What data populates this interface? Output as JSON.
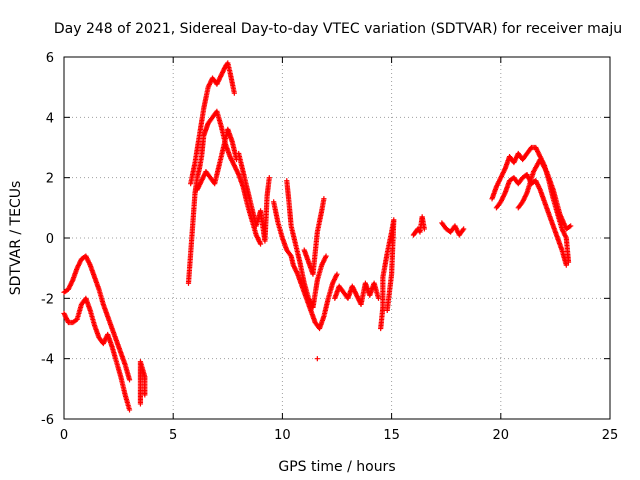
{
  "chart_data": {
    "type": "scatter",
    "title": "Day 248 of 2021, Sidereal Day-to-day VTEC variation (SDTVAR) for receiver maju",
    "xlabel": "GPS time / hours",
    "ylabel": "SDTVAR / TECUs",
    "xlim": [
      0,
      25
    ],
    "ylim": [
      -6,
      6
    ],
    "xticks": [
      0,
      5,
      10,
      15,
      20,
      25
    ],
    "yticks": [
      -6,
      -4,
      -2,
      0,
      2,
      4,
      6
    ],
    "xtick_labels": [
      "0",
      "5",
      "10",
      "15",
      "20",
      "25"
    ],
    "ytick_labels": [
      "-6",
      "-4",
      "-2",
      "0",
      "2",
      "4",
      "6"
    ],
    "grid": true,
    "marker": "+",
    "series": [
      {
        "name": "maju",
        "color": "#ff0000",
        "segments": [
          [
            [
              0.0,
              -1.8
            ],
            [
              0.2,
              -1.7
            ],
            [
              0.4,
              -1.4
            ],
            [
              0.6,
              -1.0
            ],
            [
              0.8,
              -0.7
            ],
            [
              1.0,
              -0.6
            ],
            [
              1.2,
              -0.9
            ],
            [
              1.4,
              -1.3
            ],
            [
              1.6,
              -1.7
            ],
            [
              1.8,
              -2.2
            ],
            [
              2.0,
              -2.6
            ],
            [
              2.2,
              -3.0
            ],
            [
              2.4,
              -3.4
            ],
            [
              2.6,
              -3.8
            ],
            [
              2.8,
              -4.2
            ],
            [
              3.0,
              -4.7
            ]
          ],
          [
            [
              0.0,
              -2.5
            ],
            [
              0.2,
              -2.8
            ],
            [
              0.4,
              -2.8
            ],
            [
              0.6,
              -2.7
            ],
            [
              0.8,
              -2.2
            ],
            [
              1.0,
              -2.0
            ],
            [
              1.2,
              -2.4
            ],
            [
              1.4,
              -2.9
            ],
            [
              1.6,
              -3.3
            ],
            [
              1.8,
              -3.5
            ],
            [
              2.0,
              -3.2
            ],
            [
              2.2,
              -3.6
            ],
            [
              2.4,
              -4.1
            ],
            [
              2.6,
              -4.6
            ],
            [
              2.8,
              -5.2
            ],
            [
              3.0,
              -5.7
            ]
          ],
          [
            [
              3.5,
              -5.5
            ],
            [
              3.5,
              -5.0
            ],
            [
              3.5,
              -4.5
            ],
            [
              3.5,
              -4.1
            ],
            [
              3.7,
              -4.6
            ],
            [
              3.7,
              -5.2
            ]
          ],
          [
            [
              5.7,
              -1.5
            ],
            [
              5.8,
              -0.5
            ],
            [
              5.9,
              0.5
            ],
            [
              6.0,
              1.5
            ],
            [
              6.1,
              2.0
            ],
            [
              6.2,
              2.3
            ],
            [
              6.3,
              2.7
            ],
            [
              6.4,
              3.4
            ],
            [
              6.5,
              3.6
            ],
            [
              6.6,
              3.8
            ],
            [
              6.8,
              4.0
            ],
            [
              7.0,
              4.2
            ],
            [
              7.2,
              3.7
            ],
            [
              7.4,
              3.1
            ],
            [
              7.6,
              2.7
            ],
            [
              7.8,
              2.4
            ],
            [
              8.0,
              2.1
            ],
            [
              8.2,
              1.7
            ],
            [
              8.4,
              1.1
            ],
            [
              8.6,
              0.6
            ],
            [
              8.8,
              0.1
            ],
            [
              9.0,
              -0.2
            ]
          ],
          [
            [
              5.8,
              1.8
            ],
            [
              6.0,
              2.5
            ],
            [
              6.2,
              3.4
            ],
            [
              6.4,
              4.3
            ],
            [
              6.6,
              5.0
            ],
            [
              6.8,
              5.3
            ],
            [
              7.0,
              5.1
            ],
            [
              7.2,
              5.4
            ],
            [
              7.4,
              5.7
            ],
            [
              7.5,
              5.8
            ],
            [
              7.6,
              5.5
            ],
            [
              7.8,
              4.8
            ]
          ],
          [
            [
              6.1,
              1.6
            ],
            [
              6.3,
              1.9
            ],
            [
              6.5,
              2.2
            ],
            [
              6.7,
              2.0
            ],
            [
              6.9,
              1.8
            ],
            [
              7.1,
              2.4
            ],
            [
              7.3,
              3.0
            ],
            [
              7.5,
              3.6
            ],
            [
              7.7,
              3.2
            ],
            [
              7.9,
              2.6
            ]
          ],
          [
            [
              8.0,
              2.8
            ],
            [
              8.2,
              2.2
            ],
            [
              8.4,
              1.6
            ],
            [
              8.6,
              1.0
            ],
            [
              8.8,
              0.4
            ],
            [
              9.0,
              0.9
            ],
            [
              9.2,
              -0.1
            ],
            [
              9.3,
              1.4
            ],
            [
              9.4,
              2.0
            ]
          ],
          [
            [
              9.6,
              1.2
            ],
            [
              9.8,
              0.5
            ],
            [
              10.0,
              0.0
            ],
            [
              10.2,
              -0.4
            ],
            [
              10.4,
              -0.6
            ],
            [
              10.5,
              -0.9
            ],
            [
              10.7,
              -1.2
            ],
            [
              10.9,
              -1.6
            ],
            [
              11.1,
              -2.0
            ],
            [
              11.3,
              -2.4
            ],
            [
              11.5,
              -2.8
            ],
            [
              11.7,
              -3.0
            ],
            [
              11.9,
              -2.6
            ],
            [
              12.1,
              -2.0
            ],
            [
              12.3,
              -1.5
            ],
            [
              12.5,
              -1.2
            ]
          ],
          [
            [
              10.2,
              1.9
            ],
            [
              10.3,
              1.2
            ],
            [
              10.4,
              0.4
            ],
            [
              10.6,
              -0.2
            ],
            [
              10.8,
              -0.8
            ],
            [
              11.0,
              -1.5
            ],
            [
              11.2,
              -2.0
            ],
            [
              11.4,
              -2.3
            ],
            [
              11.6,
              -1.4
            ],
            [
              11.8,
              -0.9
            ],
            [
              12.0,
              -0.6
            ]
          ],
          [
            [
              11.0,
              -0.4
            ],
            [
              11.2,
              -0.8
            ],
            [
              11.4,
              -1.2
            ],
            [
              11.6,
              0.2
            ],
            [
              11.8,
              0.9
            ],
            [
              11.9,
              1.3
            ]
          ],
          [
            [
              11.6,
              -4.0
            ]
          ],
          [
            [
              12.4,
              -2.0
            ],
            [
              12.6,
              -1.6
            ],
            [
              12.8,
              -1.8
            ],
            [
              13.0,
              -2.0
            ],
            [
              13.2,
              -1.6
            ],
            [
              13.4,
              -1.9
            ],
            [
              13.6,
              -2.2
            ],
            [
              13.8,
              -1.5
            ],
            [
              14.0,
              -1.9
            ],
            [
              14.2,
              -1.5
            ],
            [
              14.4,
              -2.0
            ]
          ],
          [
            [
              14.5,
              -3.0
            ],
            [
              14.6,
              -2.3
            ],
            [
              14.6,
              -1.3
            ],
            [
              14.8,
              -0.5
            ],
            [
              15.0,
              0.2
            ],
            [
              15.1,
              0.6
            ],
            [
              15.0,
              -1.2
            ],
            [
              14.8,
              -2.4
            ]
          ],
          [
            [
              16.0,
              0.1
            ],
            [
              16.1,
              0.2
            ],
            [
              16.2,
              0.3
            ],
            [
              16.3,
              0.2
            ],
            [
              16.4,
              0.7
            ],
            [
              16.5,
              0.3
            ]
          ],
          [
            [
              17.3,
              0.5
            ],
            [
              17.5,
              0.3
            ],
            [
              17.7,
              0.2
            ],
            [
              17.9,
              0.4
            ],
            [
              18.1,
              0.1
            ],
            [
              18.3,
              0.3
            ]
          ],
          [
            [
              19.6,
              1.3
            ],
            [
              19.8,
              1.7
            ],
            [
              20.0,
              2.0
            ],
            [
              20.2,
              2.3
            ],
            [
              20.4,
              2.7
            ],
            [
              20.6,
              2.5
            ],
            [
              20.8,
              2.8
            ],
            [
              21.0,
              2.6
            ],
            [
              21.2,
              2.8
            ],
            [
              21.4,
              3.0
            ],
            [
              21.6,
              3.0
            ],
            [
              21.8,
              2.7
            ],
            [
              22.0,
              2.4
            ],
            [
              22.2,
              1.9
            ],
            [
              22.4,
              1.3
            ],
            [
              22.6,
              0.8
            ],
            [
              22.8,
              0.3
            ],
            [
              23.0,
              0.0
            ],
            [
              23.1,
              -0.8
            ]
          ],
          [
            [
              19.8,
              1.0
            ],
            [
              20.0,
              1.2
            ],
            [
              20.2,
              1.5
            ],
            [
              20.4,
              1.9
            ],
            [
              20.6,
              2.0
            ],
            [
              20.8,
              1.8
            ],
            [
              21.0,
              2.0
            ],
            [
              21.2,
              2.1
            ],
            [
              21.4,
              1.8
            ],
            [
              21.6,
              1.9
            ],
            [
              21.8,
              1.6
            ],
            [
              22.0,
              1.2
            ],
            [
              22.2,
              0.8
            ],
            [
              22.4,
              0.4
            ],
            [
              22.6,
              0.0
            ],
            [
              22.8,
              -0.4
            ],
            [
              23.0,
              -0.9
            ]
          ],
          [
            [
              20.8,
              1.0
            ],
            [
              21.0,
              1.2
            ],
            [
              21.2,
              1.5
            ],
            [
              21.5,
              2.2
            ],
            [
              21.8,
              2.6
            ],
            [
              22.1,
              2.2
            ],
            [
              22.4,
              1.6
            ],
            [
              22.7,
              0.8
            ],
            [
              23.0,
              0.3
            ],
            [
              23.2,
              0.4
            ]
          ]
        ]
      }
    ]
  }
}
